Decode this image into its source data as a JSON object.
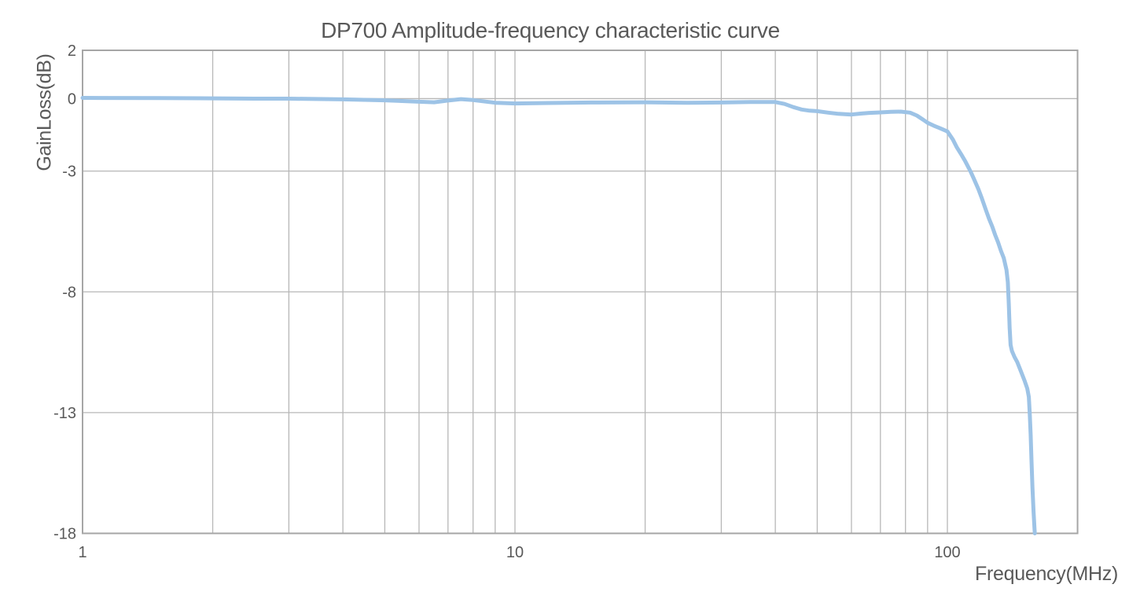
{
  "chart_data": {
    "type": "line",
    "title": "DP700 Amplitude-frequency characteristic curve",
    "xlabel": "Frequency(MHz)",
    "ylabel": "GainLoss(dB)",
    "x_scale": "log",
    "x_range": [
      1,
      200
    ],
    "y_range": [
      -18,
      2
    ],
    "grid": true,
    "legend": "none",
    "x_ticks": [
      {
        "value": 1,
        "label": "1"
      },
      {
        "value": 10,
        "label": "10"
      },
      {
        "value": 100,
        "label": "100"
      }
    ],
    "x_gridlines": [
      1,
      2,
      3,
      4,
      5,
      6,
      7,
      8,
      9,
      10,
      20,
      30,
      40,
      50,
      60,
      70,
      80,
      90,
      100,
      200
    ],
    "y_ticks": [
      {
        "value": 2,
        "label": "2"
      },
      {
        "value": 0,
        "label": "0"
      },
      {
        "value": -3,
        "label": "-3"
      },
      {
        "value": -8,
        "label": "-8"
      },
      {
        "value": -13,
        "label": "-13"
      },
      {
        "value": -18,
        "label": "-18"
      }
    ],
    "colors": {
      "line": "#9dc3e6",
      "grid": "#b7b7b7",
      "border": "#a6a6a6",
      "text": "#595959",
      "background": "#ffffff"
    },
    "series": [
      {
        "points": [
          [
            1,
            0.03
          ],
          [
            1.5,
            0.02
          ],
          [
            2,
            0.01
          ],
          [
            2.5,
            0.0
          ],
          [
            3,
            0.0
          ],
          [
            4,
            -0.03
          ],
          [
            5,
            -0.07
          ],
          [
            6,
            -0.13
          ],
          [
            6.5,
            -0.15
          ],
          [
            7,
            -0.08
          ],
          [
            7.5,
            -0.02
          ],
          [
            8,
            -0.06
          ],
          [
            9,
            -0.17
          ],
          [
            10,
            -0.2
          ],
          [
            12,
            -0.18
          ],
          [
            15,
            -0.16
          ],
          [
            20,
            -0.15
          ],
          [
            25,
            -0.17
          ],
          [
            30,
            -0.16
          ],
          [
            35,
            -0.14
          ],
          [
            40,
            -0.14
          ],
          [
            42,
            -0.22
          ],
          [
            44,
            -0.35
          ],
          [
            46,
            -0.45
          ],
          [
            48,
            -0.5
          ],
          [
            50,
            -0.52
          ],
          [
            53,
            -0.58
          ],
          [
            56,
            -0.63
          ],
          [
            60,
            -0.66
          ],
          [
            63,
            -0.62
          ],
          [
            66,
            -0.59
          ],
          [
            70,
            -0.57
          ],
          [
            74,
            -0.55
          ],
          [
            78,
            -0.54
          ],
          [
            82,
            -0.58
          ],
          [
            85,
            -0.7
          ],
          [
            88,
            -0.88
          ],
          [
            90,
            -1.0
          ],
          [
            93,
            -1.12
          ],
          [
            96,
            -1.22
          ],
          [
            100,
            -1.36
          ],
          [
            103,
            -1.7
          ],
          [
            105,
            -2.0
          ],
          [
            108,
            -2.35
          ],
          [
            110,
            -2.6
          ],
          [
            113,
            -3.0
          ],
          [
            115,
            -3.3
          ],
          [
            118,
            -3.75
          ],
          [
            120,
            -4.1
          ],
          [
            123,
            -4.65
          ],
          [
            125,
            -5.0
          ],
          [
            127,
            -5.3
          ],
          [
            129,
            -5.65
          ],
          [
            131,
            -5.95
          ],
          [
            133,
            -6.3
          ],
          [
            135,
            -6.6
          ],
          [
            137,
            -7.1
          ],
          [
            138,
            -7.6
          ],
          [
            138.7,
            -8.5
          ],
          [
            139.3,
            -9.5
          ],
          [
            140,
            -10.2
          ],
          [
            141,
            -10.45
          ],
          [
            143,
            -10.7
          ],
          [
            145,
            -10.9
          ],
          [
            148,
            -11.3
          ],
          [
            151,
            -11.7
          ],
          [
            153,
            -12.0
          ],
          [
            154.3,
            -12.35
          ],
          [
            155,
            -13.0
          ],
          [
            155.8,
            -13.9
          ],
          [
            156.5,
            -15.0
          ],
          [
            157.3,
            -16.1
          ],
          [
            158.2,
            -17.1
          ],
          [
            159,
            -17.8
          ],
          [
            159.3,
            -18.0
          ]
        ]
      }
    ]
  }
}
